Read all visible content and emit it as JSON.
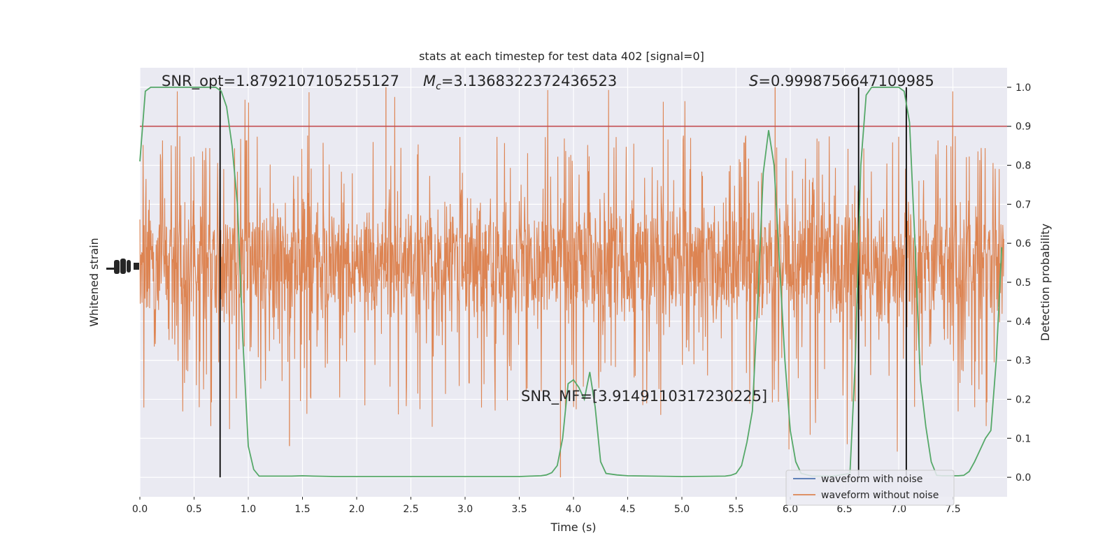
{
  "chart_data": {
    "type": "line",
    "title": "stats at each timestep for test data 402 [signal=0]",
    "xlabel": "Time (s)",
    "ylabel_left": "Whitened strain",
    "ylabel_right": "Detection probability",
    "xlim": [
      0,
      8
    ],
    "ylim_right": [
      -0.05,
      1.05
    ],
    "x_ticks": [
      "0.0",
      "0.5",
      "1.0",
      "1.5",
      "2.0",
      "2.5",
      "3.0",
      "3.5",
      "4.0",
      "4.5",
      "5.0",
      "5.5",
      "6.0",
      "6.5",
      "7.0",
      "7.5"
    ],
    "y_ticks_right": [
      "0.0",
      "0.1",
      "0.2",
      "0.3",
      "0.4",
      "0.5",
      "0.6",
      "0.7",
      "0.8",
      "0.9",
      "1.0"
    ],
    "grid": true,
    "legend_placement": "lower-right",
    "threshold": {
      "value": 0.9,
      "color": "#c44e52"
    },
    "vertical_markers": [
      0.74,
      6.63,
      7.07
    ],
    "annotations": {
      "snr_opt": "SNR_opt=1.8792107105255127",
      "mc_symbol": "M",
      "mc_sub": "c",
      "mc_value": "=3.1368322372436523",
      "s_symbol": "S",
      "s_value": "=0.9998756647109985",
      "snr_mf": "SNR_MF=[3.9149110317230225]"
    },
    "series": [
      {
        "name": "waveform with noise",
        "color": "#4c72b0"
      },
      {
        "name": "waveform without noise",
        "color": "#dd8452"
      },
      {
        "color": "#55a868",
        "axis": "right",
        "x": [
          0.0,
          0.05,
          0.1,
          0.2,
          0.3,
          0.4,
          0.5,
          0.6,
          0.7,
          0.75,
          0.8,
          0.85,
          0.9,
          0.95,
          1.0,
          1.05,
          1.1,
          1.2,
          1.3,
          1.4,
          1.5,
          1.6,
          1.8,
          2.0,
          2.5,
          3.0,
          3.5,
          3.6,
          3.7,
          3.75,
          3.8,
          3.85,
          3.9,
          3.95,
          4.0,
          4.05,
          4.1,
          4.15,
          4.2,
          4.25,
          4.3,
          4.4,
          4.5,
          5.0,
          5.4,
          5.45,
          5.5,
          5.55,
          5.6,
          5.65,
          5.7,
          5.75,
          5.8,
          5.85,
          5.9,
          5.95,
          6.0,
          6.05,
          6.1,
          6.2,
          6.4,
          6.55,
          6.6,
          6.65,
          6.7,
          6.75,
          6.8,
          6.9,
          7.0,
          7.05,
          7.1,
          7.15,
          7.2,
          7.25,
          7.3,
          7.35,
          7.4,
          7.5,
          7.55,
          7.6,
          7.65,
          7.7,
          7.75,
          7.8,
          7.85,
          7.9,
          7.95
        ],
        "values": [
          0.81,
          0.99,
          1.0,
          1.0,
          1.0,
          1.0,
          1.0,
          1.0,
          1.0,
          0.99,
          0.95,
          0.85,
          0.7,
          0.35,
          0.08,
          0.02,
          0.003,
          0.003,
          0.003,
          0.003,
          0.004,
          0.003,
          0.002,
          0.002,
          0.002,
          0.002,
          0.002,
          0.003,
          0.004,
          0.006,
          0.012,
          0.03,
          0.1,
          0.24,
          0.25,
          0.23,
          0.2,
          0.27,
          0.18,
          0.04,
          0.01,
          0.006,
          0.004,
          0.002,
          0.003,
          0.005,
          0.01,
          0.03,
          0.09,
          0.17,
          0.45,
          0.78,
          0.89,
          0.8,
          0.55,
          0.3,
          0.12,
          0.04,
          0.01,
          0.003,
          0.003,
          0.01,
          0.3,
          0.8,
          0.98,
          1.0,
          1.0,
          1.0,
          1.0,
          0.99,
          0.91,
          0.6,
          0.25,
          0.13,
          0.04,
          0.005,
          0.004,
          0.004,
          0.004,
          0.005,
          0.015,
          0.04,
          0.07,
          0.1,
          0.12,
          0.3,
          0.59
        ]
      }
    ],
    "noise_envelope": {
      "core_upper": 0.7,
      "core_lower": 0.4,
      "max_spike": 1.0,
      "min_spike": 0.0
    }
  }
}
